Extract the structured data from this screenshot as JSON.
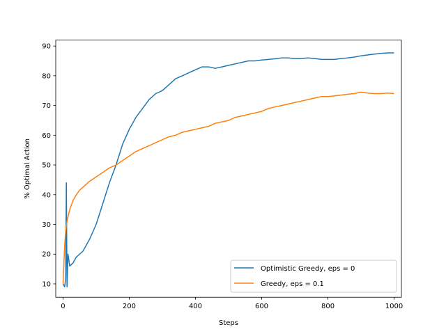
{
  "chart_data": {
    "type": "line",
    "title": "",
    "xlabel": "Steps",
    "ylabel": "% Optimal Action",
    "xlim": [
      -22,
      1022
    ],
    "ylim": [
      5.5,
      92
    ],
    "xticks": [
      0,
      200,
      400,
      600,
      800,
      1000
    ],
    "yticks": [
      10,
      20,
      30,
      40,
      50,
      60,
      70,
      80,
      90
    ],
    "grid": false,
    "legend_position": "lower-right",
    "series": [
      {
        "name": "Optimistic Greedy, eps = 0",
        "color": "#1f77b4",
        "points": [
          [
            0,
            10
          ],
          [
            5,
            9
          ],
          [
            8,
            12
          ],
          [
            10,
            44
          ],
          [
            12,
            9
          ],
          [
            15,
            20
          ],
          [
            20,
            16
          ],
          [
            30,
            17
          ],
          [
            40,
            19
          ],
          [
            60,
            21
          ],
          [
            80,
            25
          ],
          [
            100,
            30
          ],
          [
            120,
            37
          ],
          [
            140,
            44
          ],
          [
            160,
            50
          ],
          [
            180,
            57
          ],
          [
            200,
            62
          ],
          [
            220,
            66
          ],
          [
            240,
            69
          ],
          [
            260,
            72
          ],
          [
            280,
            74
          ],
          [
            300,
            75
          ],
          [
            320,
            77
          ],
          [
            340,
            79
          ],
          [
            360,
            80
          ],
          [
            380,
            81
          ],
          [
            400,
            82
          ],
          [
            420,
            83
          ],
          [
            440,
            83
          ],
          [
            460,
            82.5
          ],
          [
            480,
            83
          ],
          [
            500,
            83.5
          ],
          [
            520,
            84
          ],
          [
            540,
            84.5
          ],
          [
            560,
            85
          ],
          [
            580,
            85
          ],
          [
            600,
            85.3
          ],
          [
            620,
            85.5
          ],
          [
            640,
            85.7
          ],
          [
            660,
            86
          ],
          [
            680,
            86
          ],
          [
            700,
            85.8
          ],
          [
            720,
            85.8
          ],
          [
            740,
            86
          ],
          [
            760,
            85.8
          ],
          [
            780,
            85.5
          ],
          [
            800,
            85.5
          ],
          [
            820,
            85.5
          ],
          [
            840,
            85.8
          ],
          [
            860,
            86
          ],
          [
            880,
            86.3
          ],
          [
            900,
            86.7
          ],
          [
            920,
            87
          ],
          [
            940,
            87.3
          ],
          [
            960,
            87.5
          ],
          [
            980,
            87.7
          ],
          [
            1000,
            87.7
          ]
        ]
      },
      {
        "name": "Greedy, eps = 0.1",
        "color": "#ff7f0e",
        "points": [
          [
            0,
            10
          ],
          [
            3,
            18
          ],
          [
            5,
            23
          ],
          [
            8,
            28
          ],
          [
            12,
            31
          ],
          [
            20,
            35
          ],
          [
            30,
            38
          ],
          [
            40,
            40
          ],
          [
            50,
            41.5
          ],
          [
            60,
            42.5
          ],
          [
            80,
            44.5
          ],
          [
            100,
            46
          ],
          [
            120,
            47.5
          ],
          [
            140,
            49
          ],
          [
            160,
            50
          ],
          [
            180,
            51.5
          ],
          [
            200,
            53
          ],
          [
            220,
            54.5
          ],
          [
            240,
            55.5
          ],
          [
            260,
            56.5
          ],
          [
            280,
            57.5
          ],
          [
            300,
            58.5
          ],
          [
            320,
            59.5
          ],
          [
            340,
            60
          ],
          [
            360,
            61
          ],
          [
            380,
            61.5
          ],
          [
            400,
            62
          ],
          [
            420,
            62.5
          ],
          [
            440,
            63
          ],
          [
            460,
            64
          ],
          [
            480,
            64.5
          ],
          [
            500,
            65
          ],
          [
            520,
            66
          ],
          [
            540,
            66.5
          ],
          [
            560,
            67
          ],
          [
            580,
            67.5
          ],
          [
            600,
            68
          ],
          [
            620,
            69
          ],
          [
            640,
            69.5
          ],
          [
            660,
            70
          ],
          [
            680,
            70.5
          ],
          [
            700,
            71
          ],
          [
            720,
            71.5
          ],
          [
            740,
            72
          ],
          [
            760,
            72.5
          ],
          [
            780,
            73
          ],
          [
            800,
            73
          ],
          [
            820,
            73.2
          ],
          [
            840,
            73.5
          ],
          [
            860,
            73.8
          ],
          [
            880,
            74
          ],
          [
            900,
            74.5
          ],
          [
            920,
            74.2
          ],
          [
            940,
            74
          ],
          [
            960,
            74
          ],
          [
            980,
            74.2
          ],
          [
            1000,
            74
          ]
        ]
      }
    ]
  }
}
